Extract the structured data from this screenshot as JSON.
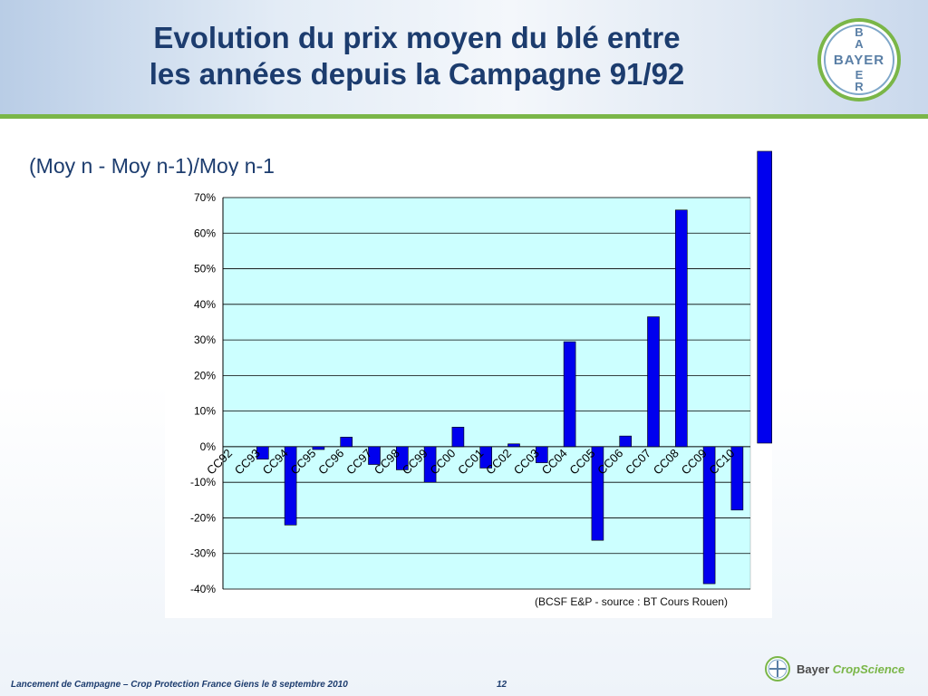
{
  "slide": {
    "title_line1": "Evolution du prix moyen du blé entre",
    "title_line2": "les années depuis la Campagne 91/92",
    "subtitle": "(Moy n - Moy n-1)/Moy n-1",
    "source_note": "(BCSF E&P - source : BT Cours Rouen)",
    "footer": "Lancement de Campagne – Crop Protection France Giens le 8 septembre 2010",
    "page_number": "12",
    "logo_text": "BAYER",
    "brand_name": "Bayer",
    "brand_division": "CropScience",
    "colors": {
      "bar": "#0000ee",
      "plot_bg": "#ccffff",
      "title": "#1c3c6e",
      "accent_green": "#7ab648"
    }
  },
  "chart_data": {
    "type": "bar",
    "title": "",
    "xlabel": "",
    "ylabel": "",
    "ylim": [
      -40,
      70
    ],
    "yticks": [
      "70%",
      "60%",
      "50%",
      "40%",
      "30%",
      "20%",
      "10%",
      "0%",
      "-10%",
      "-20%",
      "-30%",
      "-40%"
    ],
    "ytick_values": [
      70,
      60,
      50,
      40,
      30,
      20,
      10,
      0,
      -10,
      -20,
      -30,
      -40
    ],
    "categories": [
      "CC92",
      "CC93",
      "CC94",
      "CC95",
      "CC96",
      "CC97",
      "CC98",
      "CC99",
      "CC00",
      "CC01",
      "CC02",
      "CC03",
      "CC04",
      "CC05",
      "CC06",
      "CC07",
      "CC08",
      "CC09",
      "CC10"
    ],
    "values": [
      0,
      -3.5,
      -22,
      -0.8,
      2.7,
      -5,
      -6.5,
      -10,
      5.5,
      -6,
      0.8,
      -4.5,
      29.5,
      -26.3,
      3,
      36.5,
      66.5,
      -38.5,
      -17.8
    ],
    "extra_bar_value": 83,
    "grid": true,
    "legend": "none"
  }
}
